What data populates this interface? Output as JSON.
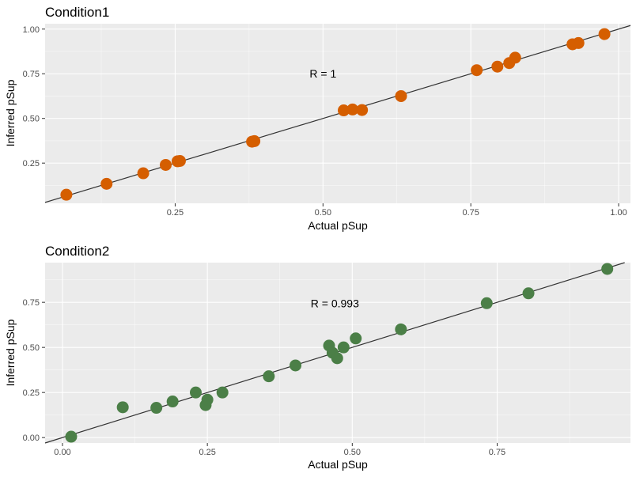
{
  "chart_data": [
    {
      "type": "scatter",
      "title": "Condition1",
      "xlabel": "Actual pSup",
      "ylabel": "Inferred pSup",
      "annotation": {
        "text": "R = 1",
        "x": 0.5,
        "y": 0.75
      },
      "xlim": [
        0.03,
        1.02
      ],
      "ylim": [
        0.025,
        1.03
      ],
      "xticks": [
        0.25,
        0.5,
        0.75,
        1.0
      ],
      "xtick_labels": [
        "0.25",
        "0.50",
        "0.75",
        "1.00"
      ],
      "yticks": [
        0.25,
        0.5,
        0.75,
        1.0
      ],
      "ytick_labels": [
        "0.25",
        "0.50",
        "0.75",
        "1.00"
      ],
      "point_color": "#D55E00",
      "fit_line": {
        "slope": 1.0,
        "intercept": 0.0
      },
      "points": [
        {
          "x": 0.066,
          "y": 0.073
        },
        {
          "x": 0.134,
          "y": 0.134
        },
        {
          "x": 0.196,
          "y": 0.193
        },
        {
          "x": 0.234,
          "y": 0.24
        },
        {
          "x": 0.254,
          "y": 0.26
        },
        {
          "x": 0.258,
          "y": 0.262
        },
        {
          "x": 0.38,
          "y": 0.37
        },
        {
          "x": 0.384,
          "y": 0.373
        },
        {
          "x": 0.535,
          "y": 0.545
        },
        {
          "x": 0.55,
          "y": 0.55
        },
        {
          "x": 0.566,
          "y": 0.547
        },
        {
          "x": 0.632,
          "y": 0.625
        },
        {
          "x": 0.76,
          "y": 0.77
        },
        {
          "x": 0.795,
          "y": 0.79
        },
        {
          "x": 0.815,
          "y": 0.81
        },
        {
          "x": 0.825,
          "y": 0.84
        },
        {
          "x": 0.922,
          "y": 0.915
        },
        {
          "x": 0.932,
          "y": 0.922
        },
        {
          "x": 0.976,
          "y": 0.972
        }
      ]
    },
    {
      "type": "scatter",
      "title": "Condition2",
      "xlabel": "Actual pSup",
      "ylabel": "Inferred pSup",
      "annotation": {
        "text": "R = 0.993",
        "x": 0.47,
        "y": 0.745
      },
      "xlim": [
        -0.03,
        0.98
      ],
      "ylim": [
        -0.03,
        0.97
      ],
      "xticks": [
        0.0,
        0.25,
        0.5,
        0.75
      ],
      "xtick_labels": [
        "0.00",
        "0.25",
        "0.50",
        "0.75"
      ],
      "yticks": [
        0.0,
        0.25,
        0.5,
        0.75
      ],
      "ytick_labels": [
        "0.00",
        "0.25",
        "0.50",
        "0.75"
      ],
      "point_color": "#4B7F47",
      "fit_line": {
        "slope": 1.0,
        "intercept": 0.0
      },
      "points": [
        {
          "x": 0.015,
          "y": 0.005
        },
        {
          "x": 0.104,
          "y": 0.168
        },
        {
          "x": 0.162,
          "y": 0.165
        },
        {
          "x": 0.19,
          "y": 0.2
        },
        {
          "x": 0.23,
          "y": 0.25
        },
        {
          "x": 0.247,
          "y": 0.18
        },
        {
          "x": 0.25,
          "y": 0.21
        },
        {
          "x": 0.276,
          "y": 0.25
        },
        {
          "x": 0.356,
          "y": 0.34
        },
        {
          "x": 0.402,
          "y": 0.4
        },
        {
          "x": 0.46,
          "y": 0.51
        },
        {
          "x": 0.466,
          "y": 0.47
        },
        {
          "x": 0.474,
          "y": 0.44
        },
        {
          "x": 0.485,
          "y": 0.5
        },
        {
          "x": 0.506,
          "y": 0.55
        },
        {
          "x": 0.584,
          "y": 0.6
        },
        {
          "x": 0.732,
          "y": 0.745
        },
        {
          "x": 0.804,
          "y": 0.8
        },
        {
          "x": 0.94,
          "y": 0.935
        }
      ]
    }
  ]
}
